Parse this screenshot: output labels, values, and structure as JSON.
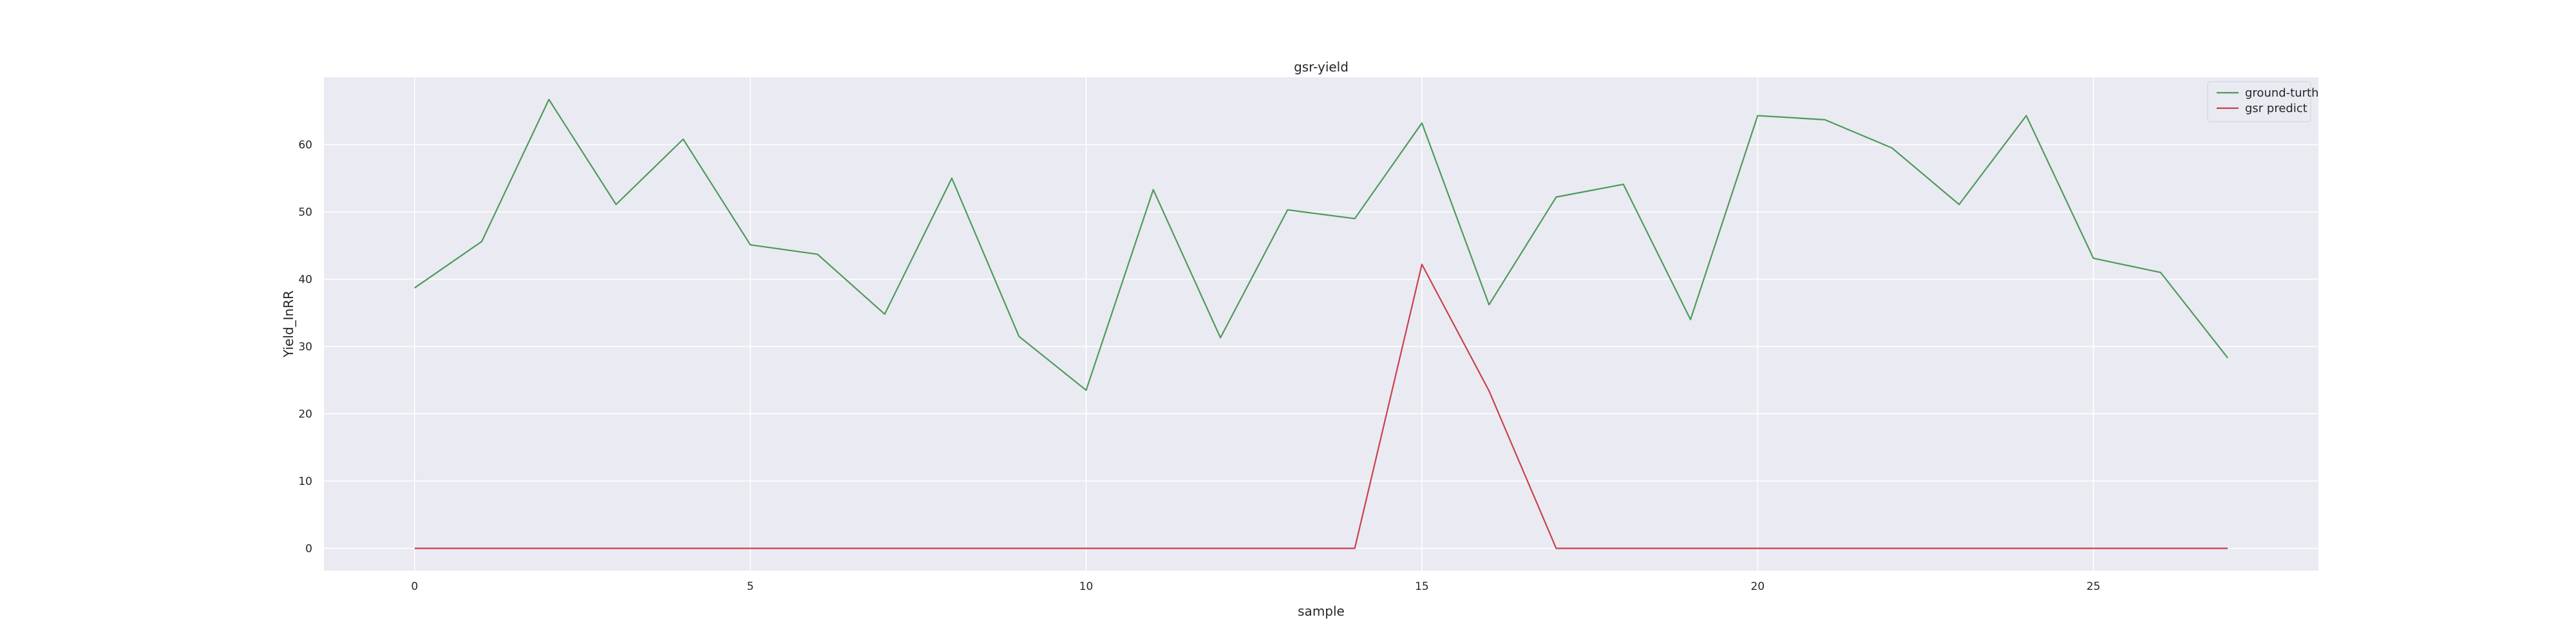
{
  "chart_data": {
    "type": "line",
    "title": "gsr-yield",
    "xlabel": "sample",
    "ylabel": "Yield_InRR",
    "xlim": [
      -1.35,
      28.35
    ],
    "ylim": [
      -3.3,
      70.0
    ],
    "xticks": [
      0,
      5,
      10,
      15,
      20,
      25
    ],
    "yticks": [
      0,
      10,
      20,
      30,
      40,
      50,
      60
    ],
    "grid": true,
    "legend_position": "top-right",
    "x": [
      0,
      1,
      2,
      3,
      4,
      5,
      6,
      7,
      8,
      9,
      10,
      11,
      12,
      13,
      14,
      15,
      16,
      17,
      18,
      19,
      20,
      21,
      22,
      23,
      24,
      25,
      26,
      27
    ],
    "series": [
      {
        "name": "ground-turth",
        "color": "#4d9a5a",
        "values": [
          38.7,
          45.6,
          66.7,
          51.1,
          60.8,
          45.1,
          43.7,
          34.8,
          55.0,
          31.5,
          23.5,
          53.3,
          31.3,
          50.3,
          49.0,
          63.2,
          36.2,
          52.2,
          54.1,
          34.0,
          64.3,
          63.7,
          59.5,
          51.1,
          64.3,
          43.1,
          41.0,
          28.3
        ]
      },
      {
        "name": "gsr predict",
        "color": "#c8414c",
        "values": [
          0,
          0,
          0,
          0,
          0,
          0,
          0,
          0,
          0,
          0,
          0,
          0,
          0,
          0,
          0,
          42.2,
          23.4,
          0,
          0,
          0,
          0,
          0,
          0,
          0,
          0,
          0,
          0,
          0
        ]
      }
    ]
  }
}
